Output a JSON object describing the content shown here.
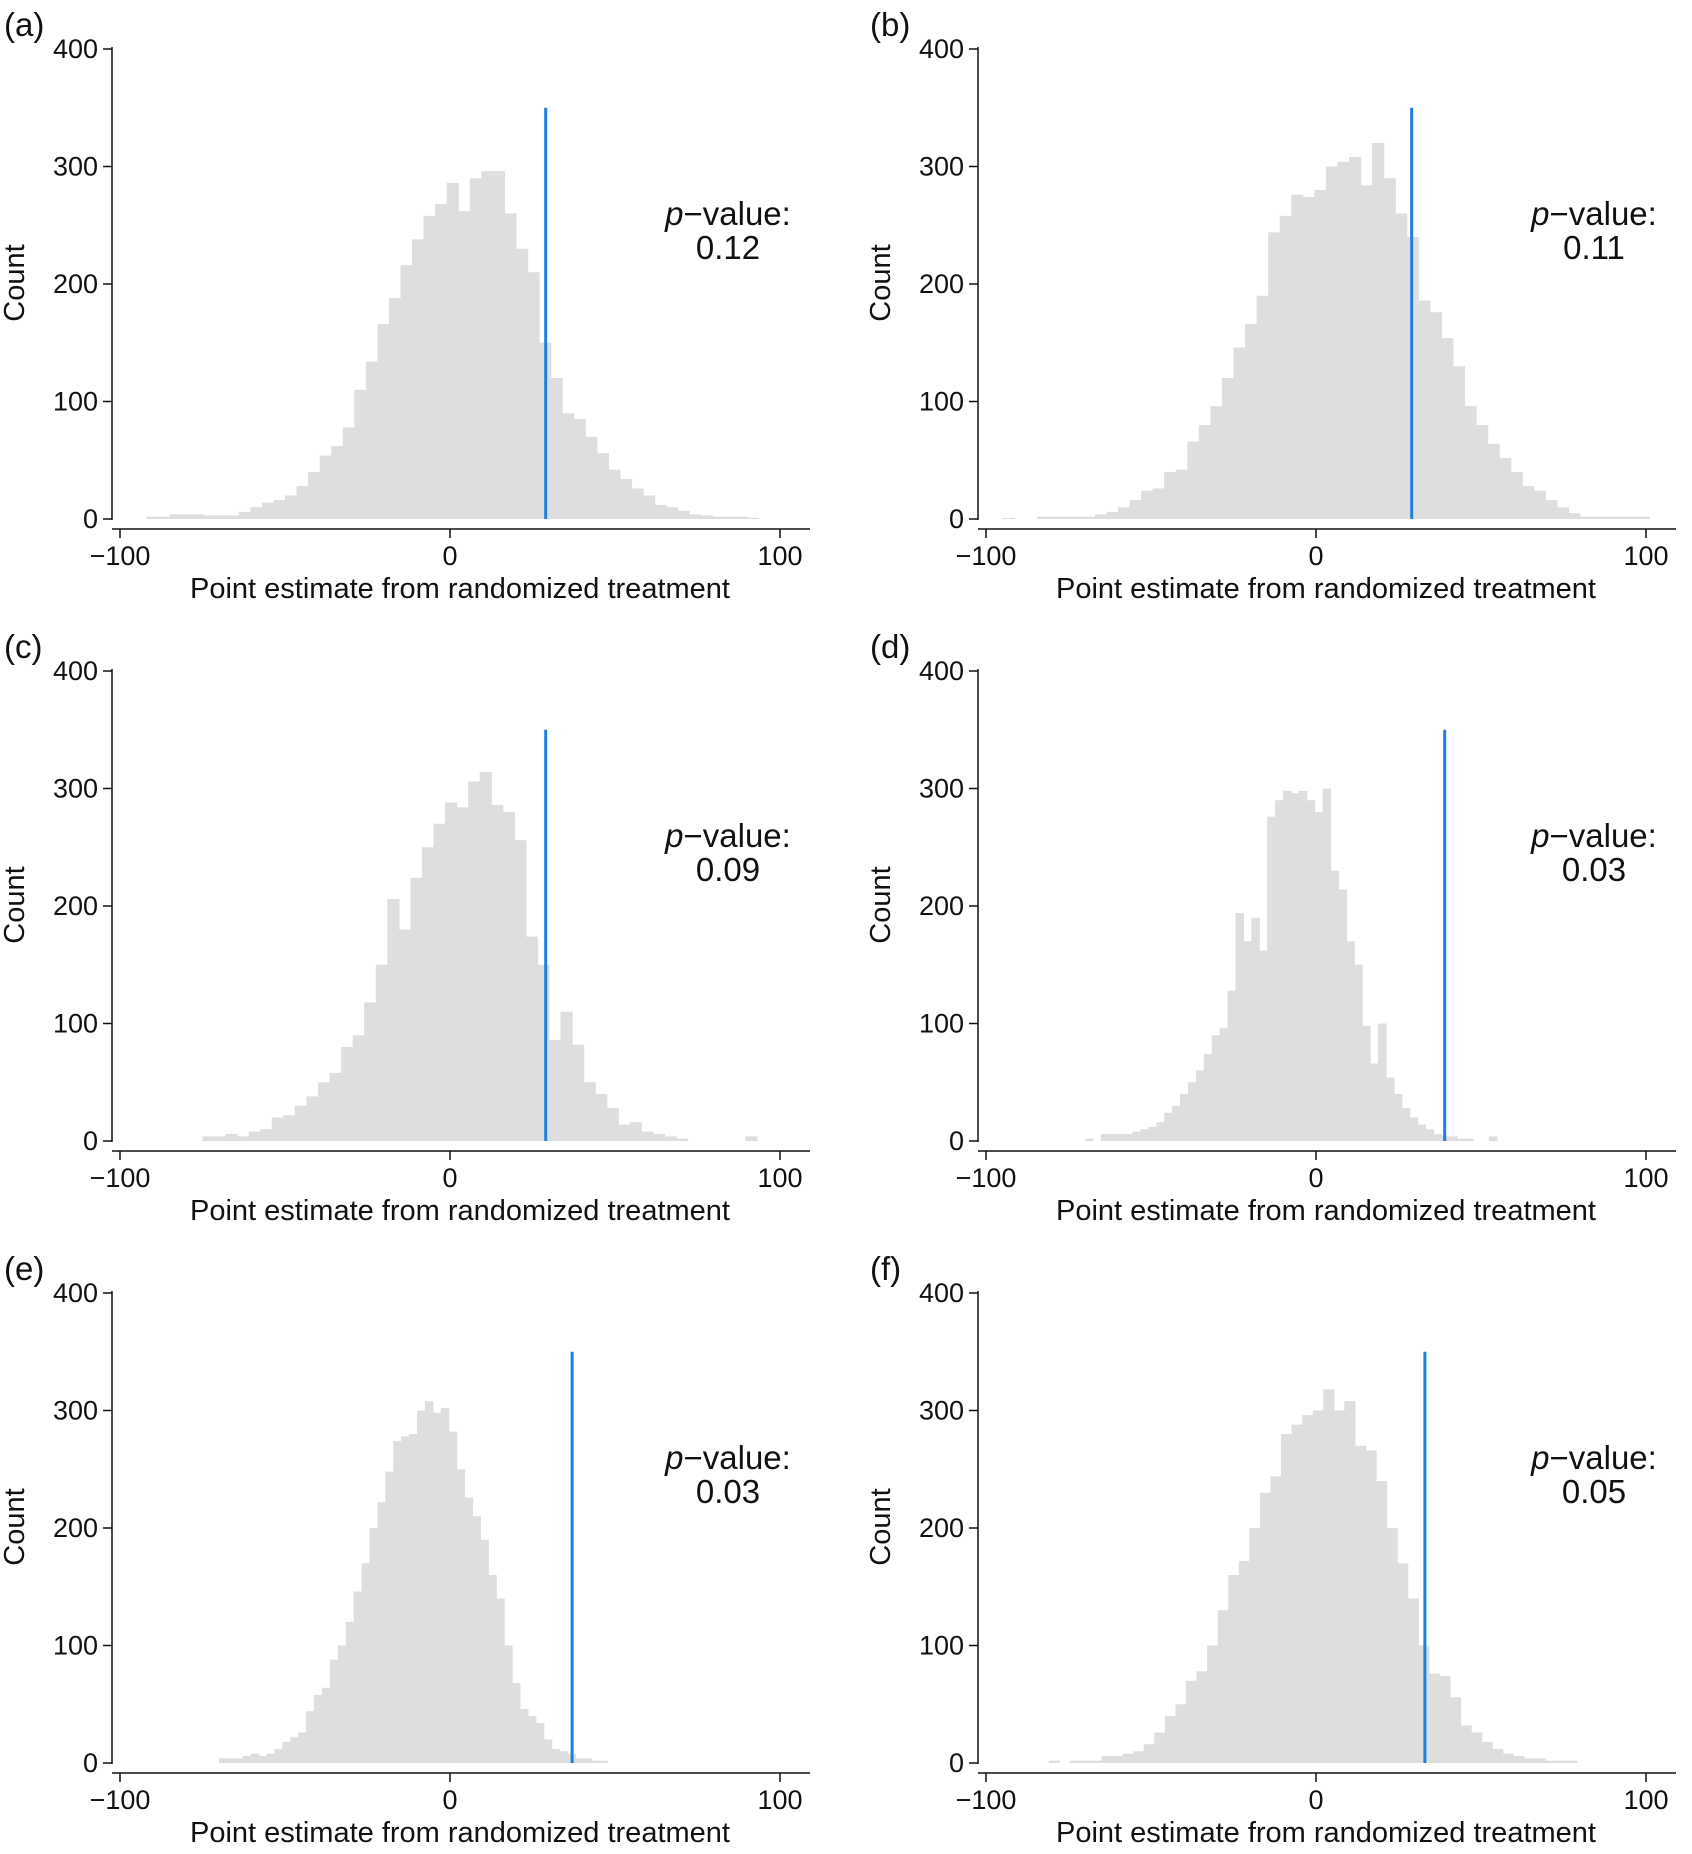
{
  "style": {
    "bar_color": "#dedede",
    "observed_line_color": "#1f7fe0",
    "axis_color": "#111111"
  },
  "chart_data": [
    {
      "type": "bar",
      "panel_label": "(a)",
      "xlabel": "Point estimate from randomized treatment",
      "ylabel": "Count",
      "xlim": [
        -100,
        100
      ],
      "ylim": [
        0,
        400
      ],
      "xticks": [
        "−100",
        "0",
        "100"
      ],
      "yticks": [
        "0",
        "100",
        "200",
        "300",
        "400"
      ],
      "annotation_prefix": "p",
      "annotation_suffix": "−value:",
      "p_value": "0.12",
      "observed_estimate": 29,
      "bin_start": -92,
      "bin_width": 3.5,
      "counts": [
        2,
        2,
        4,
        4,
        4,
        3,
        3,
        3,
        6,
        10,
        14,
        16,
        20,
        28,
        40,
        54,
        62,
        78,
        110,
        134,
        166,
        188,
        216,
        238,
        258,
        268,
        286,
        262,
        290,
        296,
        296,
        260,
        230,
        210,
        150,
        120,
        90,
        85,
        70,
        56,
        42,
        34,
        26,
        20,
        12,
        10,
        7,
        4,
        3,
        2,
        2,
        2,
        1
      ]
    },
    {
      "type": "bar",
      "panel_label": "(b)",
      "xlabel": "Point estimate from randomized treatment",
      "ylabel": "Count",
      "xlim": [
        -100,
        100
      ],
      "ylim": [
        0,
        400
      ],
      "xticks": [
        "−100",
        "0",
        "100"
      ],
      "yticks": [
        "0",
        "100",
        "200",
        "300",
        "400"
      ],
      "annotation_prefix": "p",
      "annotation_suffix": "−value:",
      "p_value": "0.11",
      "observed_estimate": 29,
      "bin_start": -95,
      "bin_width": 3.5,
      "counts": [
        1,
        0,
        0,
        2,
        2,
        2,
        2,
        2,
        4,
        6,
        10,
        16,
        24,
        26,
        40,
        42,
        66,
        80,
        96,
        120,
        146,
        166,
        190,
        244,
        258,
        276,
        274,
        280,
        300,
        304,
        308,
        284,
        320,
        290,
        260,
        240,
        186,
        176,
        154,
        130,
        96,
        80,
        64,
        52,
        40,
        28,
        24,
        16,
        10,
        5,
        2,
        2,
        2,
        2,
        2,
        2
      ]
    },
    {
      "type": "bar",
      "panel_label": "(c)",
      "xlabel": "Point estimate from randomized treatment",
      "ylabel": "Count",
      "xlim": [
        -100,
        100
      ],
      "ylim": [
        0,
        400
      ],
      "xticks": [
        "−100",
        "0",
        "100"
      ],
      "yticks": [
        "0",
        "100",
        "200",
        "300",
        "400"
      ],
      "annotation_prefix": "p",
      "annotation_suffix": "−value:",
      "p_value": "0.09",
      "observed_estimate": 29,
      "bin_start": -75,
      "bin_width": 3.5,
      "counts": [
        4,
        4,
        6,
        4,
        8,
        10,
        20,
        22,
        30,
        38,
        50,
        58,
        80,
        90,
        118,
        150,
        206,
        180,
        224,
        250,
        270,
        288,
        284,
        306,
        314,
        286,
        280,
        256,
        174,
        150,
        86,
        110,
        82,
        50,
        40,
        28,
        14,
        16,
        8,
        6,
        4,
        2,
        0,
        0,
        0,
        0,
        0,
        4
      ]
    },
    {
      "type": "bar",
      "panel_label": "(d)",
      "xlabel": "Point estimate from randomized treatment",
      "ylabel": "Count",
      "xlim": [
        -100,
        100
      ],
      "ylim": [
        0,
        400
      ],
      "xticks": [
        "−100",
        "0",
        "100"
      ],
      "yticks": [
        "0",
        "100",
        "200",
        "300",
        "400"
      ],
      "annotation_prefix": "p",
      "annotation_suffix": "−value:",
      "p_value": "0.03",
      "observed_estimate": 39,
      "bin_start": -70,
      "bin_width": 2.4,
      "counts": [
        2,
        0,
        6,
        6,
        6,
        6,
        8,
        10,
        12,
        16,
        24,
        30,
        40,
        50,
        60,
        74,
        90,
        96,
        128,
        194,
        170,
        190,
        162,
        276,
        290,
        298,
        296,
        298,
        290,
        280,
        300,
        230,
        214,
        170,
        150,
        98,
        66,
        100,
        54,
        40,
        28,
        20,
        14,
        10,
        6,
        4,
        4,
        2,
        2,
        0,
        0,
        4
      ]
    },
    {
      "type": "bar",
      "panel_label": "(e)",
      "xlabel": "Point estimate from randomized treatment",
      "ylabel": "Count",
      "xlim": [
        -100,
        100
      ],
      "ylim": [
        0,
        400
      ],
      "xticks": [
        "−100",
        "0",
        "100"
      ],
      "yticks": [
        "0",
        "100",
        "200",
        "300",
        "400"
      ],
      "annotation_prefix": "p",
      "annotation_suffix": "−value:",
      "p_value": "0.03",
      "observed_estimate": 37,
      "bin_start": -70,
      "bin_width": 2.4,
      "counts": [
        4,
        4,
        4,
        6,
        8,
        6,
        8,
        12,
        18,
        22,
        26,
        44,
        58,
        64,
        88,
        100,
        120,
        146,
        170,
        200,
        222,
        248,
        274,
        278,
        280,
        300,
        308,
        298,
        302,
        282,
        250,
        226,
        210,
        190,
        160,
        140,
        100,
        68,
        46,
        40,
        34,
        20,
        12,
        10,
        8,
        4,
        4,
        2,
        2
      ]
    },
    {
      "type": "bar",
      "panel_label": "(f)",
      "xlabel": "Point estimate from randomized treatment",
      "ylabel": "Count",
      "xlim": [
        -100,
        100
      ],
      "ylim": [
        0,
        400
      ],
      "xticks": [
        "−100",
        "0",
        "100"
      ],
      "yticks": [
        "0",
        "100",
        "200",
        "300",
        "400"
      ],
      "annotation_prefix": "p",
      "annotation_suffix": "−value:",
      "p_value": "0.05",
      "observed_estimate": 33,
      "bin_start": -81,
      "bin_width": 3.2,
      "counts": [
        2,
        0,
        2,
        2,
        2,
        6,
        6,
        8,
        10,
        16,
        26,
        40,
        50,
        70,
        78,
        100,
        130,
        160,
        172,
        200,
        230,
        244,
        280,
        288,
        296,
        300,
        318,
        300,
        308,
        270,
        266,
        240,
        200,
        170,
        140,
        100,
        76,
        74,
        56,
        32,
        26,
        18,
        12,
        8,
        6,
        4,
        4,
        2,
        2,
        2
      ]
    }
  ]
}
